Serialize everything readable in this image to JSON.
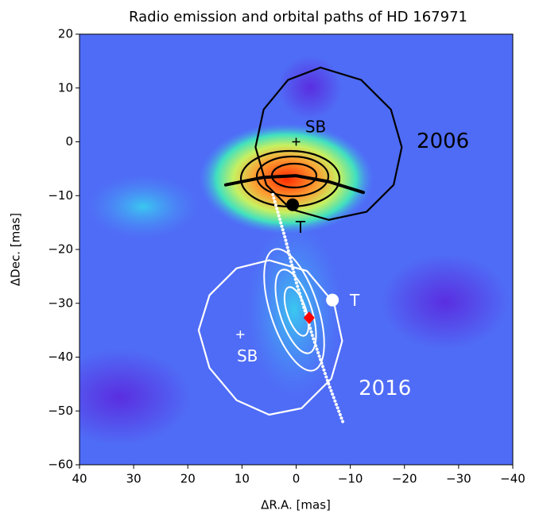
{
  "chart_data": {
    "type": "line",
    "title": "Radio emission and orbital paths of HD 167971",
    "xlabel": "ΔR.A. [mas]",
    "ylabel": "ΔDec. [mas]",
    "xlim": [
      40,
      -40
    ],
    "ylim": [
      -60,
      20
    ],
    "xticks": [
      40,
      30,
      20,
      10,
      0,
      {
        "value": -10,
        "label": "−10"
      },
      {
        "value": -20,
        "label": "−20"
      },
      {
        "value": -30,
        "label": "−30"
      },
      {
        "value": -40,
        "label": "−40"
      }
    ],
    "yticks": [
      {
        "value": -60,
        "label": "−60"
      },
      {
        "value": -50,
        "label": "−50"
      },
      {
        "value": -40,
        "label": "−40"
      },
      {
        "value": -30,
        "label": "−30"
      },
      {
        "value": -20,
        "label": "−20"
      },
      {
        "value": -10,
        "label": "−10"
      },
      0,
      10,
      20
    ],
    "series": [
      {
        "color": "#000000",
        "width": 2.2,
        "dotted": false,
        "x": [
          -4.5,
          -12,
          -17.5,
          -19.5,
          -18,
          -13,
          -6,
          1,
          5.5,
          7.5,
          6,
          1.5,
          -4.5
        ],
        "y": [
          13.8,
          11.5,
          6,
          -1,
          -8,
          -13,
          -14.5,
          -12.5,
          -8,
          -1,
          6,
          11.5,
          13.8
        ]
      },
      {
        "color": "#ffffff",
        "width": 2.2,
        "dotted": false,
        "x": [
          5,
          -2,
          -7,
          -8.5,
          -6.5,
          -1,
          5,
          11,
          16,
          18,
          16,
          11,
          5
        ],
        "y": [
          -22,
          -24,
          -30,
          -37,
          -44,
          -49.5,
          -50.7,
          -48,
          -42,
          -35,
          -28.5,
          -23.5,
          -22
        ]
      },
      {
        "color": "#000000",
        "width": 4,
        "dotted": false,
        "x": [
          13,
          6,
          0,
          -6,
          -12.4
        ],
        "y": [
          -8,
          -6.6,
          -6.3,
          -7.4,
          -9.4
        ]
      },
      {
        "color": "#ffffff",
        "width": 4,
        "dotted": true,
        "x": [
          4.3,
          2,
          0,
          -3,
          -6,
          -8.8
        ],
        "y": [
          -9.8,
          -18,
          -26,
          -36,
          -45,
          -52.5
        ]
      }
    ],
    "points": [
      {
        "x": 0,
        "y": 0,
        "marker": "plus",
        "color": "#000000"
      },
      {
        "x": 0.65,
        "y": -11.7,
        "marker": "circle",
        "color": "#000000"
      },
      {
        "x": 10.3,
        "y": -35.8,
        "marker": "plus",
        "color": "#ffffff"
      },
      {
        "x": -6.7,
        "y": -29.4,
        "marker": "circle",
        "color": "#ffffff"
      },
      {
        "x": -2.4,
        "y": -32.7,
        "marker": "diamond",
        "color": "#ff0000"
      }
    ],
    "annotations": [
      {
        "text": "SB",
        "x": -3.6,
        "y": 2.6,
        "color": "#000000",
        "size": 20
      },
      {
        "text": "T",
        "x": -0.8,
        "y": -16.1,
        "color": "#000000",
        "size": 20
      },
      {
        "text": "2006",
        "x": -27.1,
        "y": 0,
        "color": "#000000",
        "size": 26
      },
      {
        "text": "T",
        "x": -10.8,
        "y": -29.7,
        "color": "#ffffff",
        "size": 20
      },
      {
        "text": "SB",
        "x": 9,
        "y": -40,
        "color": "#ffffff",
        "size": 20
      },
      {
        "text": "2016",
        "x": -16.4,
        "y": -45.9,
        "color": "#ffffff",
        "size": 26
      }
    ]
  }
}
